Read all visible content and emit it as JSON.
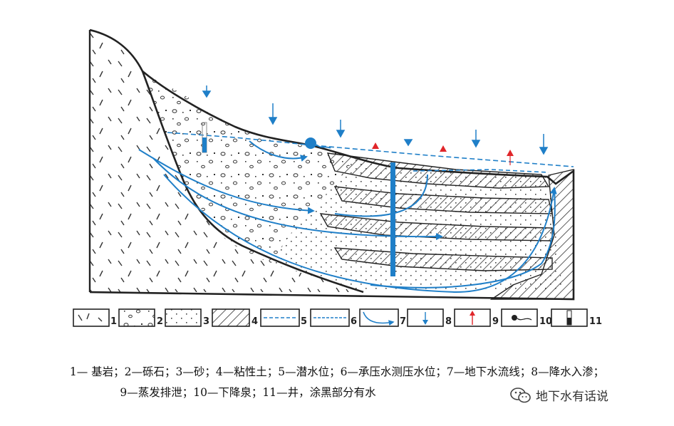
{
  "legend": [
    "1",
    "2",
    "3",
    "4",
    "5",
    "6",
    "7",
    "8",
    "9",
    "10",
    "11"
  ],
  "caption": {
    "line1": "1— 基岩；2—砾石；3—砂；4—粘性土；5—潜水位；6—承压水测压水位；7—地下水流线；8—降水入渗；",
    "line2": "9—蒸发排泄；10—下降泉；11—井，涂黑部分有水"
  },
  "watermark": {
    "text": "地下水有话说",
    "icon": "wechat-icon"
  },
  "colors": {
    "water": "#1f7fc8",
    "evaporation": "#e0262a",
    "outline": "#222222"
  }
}
